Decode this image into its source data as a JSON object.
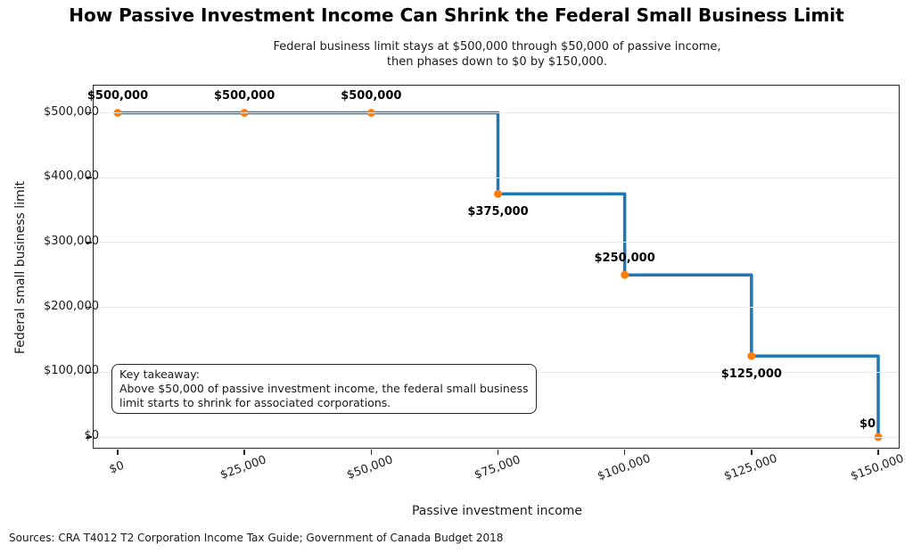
{
  "title": "How Passive Investment Income Can Shrink the Federal Small Business Limit",
  "subtitle": "Federal business limit stays at $500,000 through $50,000 of passive income,\nthen phases down to $0 by $150,000.",
  "annotation": "Key takeaway:\nAbove $50,000 of passive investment income, the federal small business\nlimit starts to shrink for associated corporations.",
  "source": "Sources: CRA T4012 T2 Corporation Income Tax Guide; Government of Canada Budget 2018",
  "chart_data": {
    "type": "line",
    "line_style": "step-post",
    "title": "How Passive Investment Income Can Shrink the Federal Small Business Limit",
    "xlabel": "Passive investment income",
    "ylabel": "Federal small business limit",
    "x": [
      0,
      25000,
      50000,
      75000,
      100000,
      125000,
      150000
    ],
    "y": [
      500000,
      500000,
      500000,
      375000,
      250000,
      125000,
      0
    ],
    "point_labels": [
      "$500,000",
      "$500,000",
      "$500,000",
      "$375,000",
      "$250,000",
      "$125,000",
      "$0"
    ],
    "point_label_positions": [
      "above",
      "above",
      "above",
      "below",
      "above",
      "below",
      "above-left"
    ],
    "x_ticks": [
      0,
      25000,
      50000,
      75000,
      100000,
      125000,
      150000
    ],
    "x_tick_labels": [
      "$0",
      "$25,000",
      "$50,000",
      "$75,000",
      "$100,000",
      "$125,000",
      "$150,000"
    ],
    "y_ticks": [
      0,
      100000,
      200000,
      300000,
      400000,
      500000
    ],
    "y_tick_labels": [
      "$0",
      "$100,000",
      "$200,000",
      "$300,000",
      "$400,000",
      "$500,000"
    ],
    "xlim": [
      0,
      150000
    ],
    "ylim": [
      0,
      500000
    ],
    "grid": "horizontal",
    "legend": "none",
    "line_color": "#1f77b4",
    "marker_color": "#ff7f0e",
    "grid_color": "#e9e9e9"
  }
}
